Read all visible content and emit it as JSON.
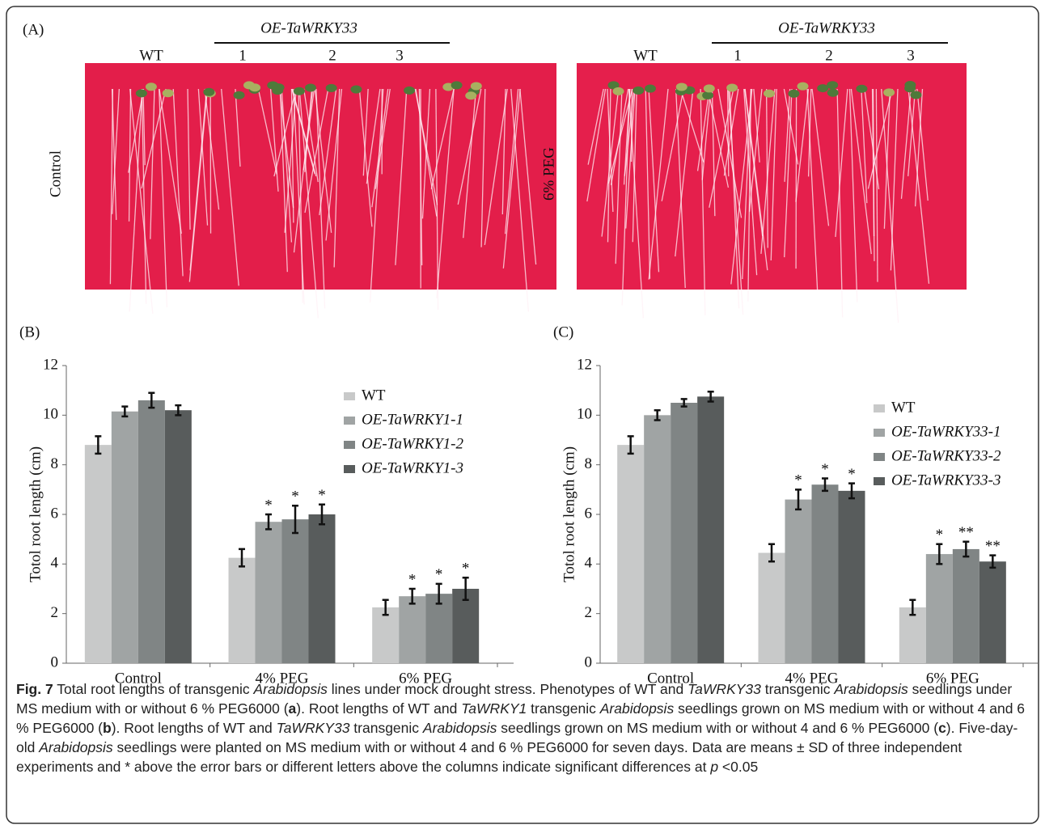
{
  "panel_a": {
    "label": "(A)",
    "photos": [
      {
        "group": "OE-TaWRKY33",
        "wt": "WT",
        "lines": [
          "1",
          "2",
          "3"
        ],
        "condition": "Control"
      },
      {
        "group": "OE-TaWRKY33",
        "wt": "WT",
        "lines": [
          "1",
          "2",
          "3"
        ],
        "condition": "6% PEG"
      }
    ]
  },
  "chart_data": [
    {
      "type": "bar",
      "panel_label": "(B)",
      "ylabel": "Totol root length (cm)",
      "categories": [
        "Control",
        "4% PEG",
        "6% PEG"
      ],
      "series": [
        {
          "name": "WT",
          "color": "#c8c9c9",
          "values": [
            8.8,
            4.25,
            2.25
          ],
          "errors": [
            0.35,
            0.35,
            0.3
          ],
          "significance": [
            null,
            null,
            null
          ]
        },
        {
          "name": "OE-TaWRKY1-1",
          "color": "#a0a4a4",
          "values": [
            10.15,
            5.7,
            2.7
          ],
          "errors": [
            0.2,
            0.3,
            0.3
          ],
          "significance": [
            null,
            "*",
            "*"
          ]
        },
        {
          "name": "OE-TaWRKY1-2",
          "color": "#808585",
          "values": [
            10.6,
            5.8,
            2.8
          ],
          "errors": [
            0.3,
            0.55,
            0.4
          ],
          "significance": [
            null,
            "*",
            "*"
          ]
        },
        {
          "name": "OE-TaWRKY1-3",
          "color": "#585c5c",
          "values": [
            10.2,
            6.0,
            3.0
          ],
          "errors": [
            0.2,
            0.4,
            0.45
          ],
          "significance": [
            null,
            "*",
            "*"
          ]
        }
      ],
      "ylim": [
        0,
        12
      ],
      "yticks": [
        0,
        2,
        4,
        6,
        8,
        10,
        12
      ],
      "legend": "upper right"
    },
    {
      "type": "bar",
      "panel_label": "(C)",
      "ylabel": "Totol root length (cm)",
      "categories": [
        "Control",
        "4% PEG",
        "6% PEG"
      ],
      "series": [
        {
          "name": "WT",
          "color": "#c8c9c9",
          "values": [
            8.8,
            4.45,
            2.25
          ],
          "errors": [
            0.35,
            0.35,
            0.3
          ],
          "significance": [
            null,
            null,
            null
          ]
        },
        {
          "name": "OE-TaWRKY33-1",
          "color": "#a0a4a4",
          "values": [
            10.0,
            6.6,
            4.4
          ],
          "errors": [
            0.2,
            0.4,
            0.4
          ],
          "significance": [
            null,
            "*",
            "*"
          ]
        },
        {
          "name": "OE-TaWRKY33-2",
          "color": "#808585",
          "values": [
            10.5,
            7.2,
            4.6
          ],
          "errors": [
            0.15,
            0.25,
            0.3
          ],
          "significance": [
            null,
            "*",
            "**"
          ]
        },
        {
          "name": "OE-TaWRKY33-3",
          "color": "#585c5c",
          "values": [
            10.75,
            6.95,
            4.1
          ],
          "errors": [
            0.2,
            0.3,
            0.25
          ],
          "significance": [
            null,
            "*",
            "**"
          ]
        }
      ],
      "ylim": [
        0,
        12
      ],
      "yticks": [
        0,
        2,
        4,
        6,
        8,
        10,
        12
      ],
      "legend": "upper right"
    }
  ],
  "caption": [
    "Fig. 7",
    " Total root lengths of transgenic ",
    "Arabidopsis",
    " lines under mock drought stress. Phenotypes of WT and ",
    "TaWRKY33",
    " transgenic ",
    "Arabidopsis",
    " seedlings under MS medium with or without 6 % PEG6000 (",
    "a",
    "). Root lengths of WT and ",
    "TaWRKY1",
    " transgenic ",
    "Arabidopsis",
    " seedlings grown on MS medium with or without 4 and 6 % PEG6000 (",
    "b",
    ").  Root lengths of WT and ",
    "TaWRKY33",
    " transgenic ",
    "Arabidopsis",
    " seedlings grown on MS medium with or without 4 and 6 % PEG6000 (",
    "c",
    "). Five-day-old ",
    "Arabidopsis",
    " seedlings were planted on MS medium with or without 4 and 6 % PEG6000 for seven days. Data are means ± SD of three independent experiments and * above the error bars or different letters above the columns indicate significant differences at ",
    "p",
    " <0.05"
  ]
}
